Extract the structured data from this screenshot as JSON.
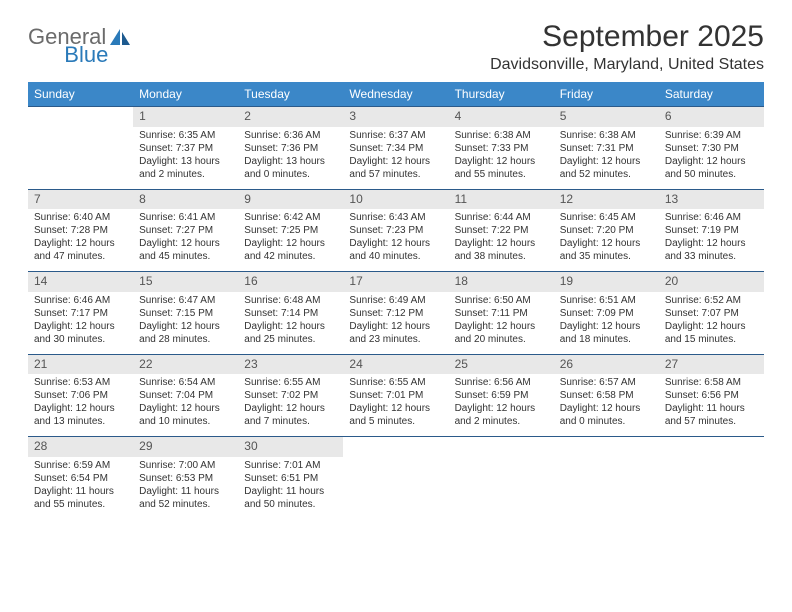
{
  "logo": {
    "text_general": "General",
    "text_blue": "Blue",
    "icon_color": "#2a7ab9"
  },
  "title": "September 2025",
  "location": "Davidsonville, Maryland, United States",
  "colors": {
    "header_bg": "#3b87c8",
    "header_fg": "#ffffff",
    "row_border": "#2b5a8a",
    "daynum_bg": "#e8e8e8",
    "page_bg": "#ffffff",
    "text": "#333333"
  },
  "day_headers": [
    "Sunday",
    "Monday",
    "Tuesday",
    "Wednesday",
    "Thursday",
    "Friday",
    "Saturday"
  ],
  "weeks": [
    [
      {
        "num": "",
        "sunrise": "",
        "sunset": "",
        "daylight": ""
      },
      {
        "num": "1",
        "sunrise": "Sunrise: 6:35 AM",
        "sunset": "Sunset: 7:37 PM",
        "daylight": "Daylight: 13 hours and 2 minutes."
      },
      {
        "num": "2",
        "sunrise": "Sunrise: 6:36 AM",
        "sunset": "Sunset: 7:36 PM",
        "daylight": "Daylight: 13 hours and 0 minutes."
      },
      {
        "num": "3",
        "sunrise": "Sunrise: 6:37 AM",
        "sunset": "Sunset: 7:34 PM",
        "daylight": "Daylight: 12 hours and 57 minutes."
      },
      {
        "num": "4",
        "sunrise": "Sunrise: 6:38 AM",
        "sunset": "Sunset: 7:33 PM",
        "daylight": "Daylight: 12 hours and 55 minutes."
      },
      {
        "num": "5",
        "sunrise": "Sunrise: 6:38 AM",
        "sunset": "Sunset: 7:31 PM",
        "daylight": "Daylight: 12 hours and 52 minutes."
      },
      {
        "num": "6",
        "sunrise": "Sunrise: 6:39 AM",
        "sunset": "Sunset: 7:30 PM",
        "daylight": "Daylight: 12 hours and 50 minutes."
      }
    ],
    [
      {
        "num": "7",
        "sunrise": "Sunrise: 6:40 AM",
        "sunset": "Sunset: 7:28 PM",
        "daylight": "Daylight: 12 hours and 47 minutes."
      },
      {
        "num": "8",
        "sunrise": "Sunrise: 6:41 AM",
        "sunset": "Sunset: 7:27 PM",
        "daylight": "Daylight: 12 hours and 45 minutes."
      },
      {
        "num": "9",
        "sunrise": "Sunrise: 6:42 AM",
        "sunset": "Sunset: 7:25 PM",
        "daylight": "Daylight: 12 hours and 42 minutes."
      },
      {
        "num": "10",
        "sunrise": "Sunrise: 6:43 AM",
        "sunset": "Sunset: 7:23 PM",
        "daylight": "Daylight: 12 hours and 40 minutes."
      },
      {
        "num": "11",
        "sunrise": "Sunrise: 6:44 AM",
        "sunset": "Sunset: 7:22 PM",
        "daylight": "Daylight: 12 hours and 38 minutes."
      },
      {
        "num": "12",
        "sunrise": "Sunrise: 6:45 AM",
        "sunset": "Sunset: 7:20 PM",
        "daylight": "Daylight: 12 hours and 35 minutes."
      },
      {
        "num": "13",
        "sunrise": "Sunrise: 6:46 AM",
        "sunset": "Sunset: 7:19 PM",
        "daylight": "Daylight: 12 hours and 33 minutes."
      }
    ],
    [
      {
        "num": "14",
        "sunrise": "Sunrise: 6:46 AM",
        "sunset": "Sunset: 7:17 PM",
        "daylight": "Daylight: 12 hours and 30 minutes."
      },
      {
        "num": "15",
        "sunrise": "Sunrise: 6:47 AM",
        "sunset": "Sunset: 7:15 PM",
        "daylight": "Daylight: 12 hours and 28 minutes."
      },
      {
        "num": "16",
        "sunrise": "Sunrise: 6:48 AM",
        "sunset": "Sunset: 7:14 PM",
        "daylight": "Daylight: 12 hours and 25 minutes."
      },
      {
        "num": "17",
        "sunrise": "Sunrise: 6:49 AM",
        "sunset": "Sunset: 7:12 PM",
        "daylight": "Daylight: 12 hours and 23 minutes."
      },
      {
        "num": "18",
        "sunrise": "Sunrise: 6:50 AM",
        "sunset": "Sunset: 7:11 PM",
        "daylight": "Daylight: 12 hours and 20 minutes."
      },
      {
        "num": "19",
        "sunrise": "Sunrise: 6:51 AM",
        "sunset": "Sunset: 7:09 PM",
        "daylight": "Daylight: 12 hours and 18 minutes."
      },
      {
        "num": "20",
        "sunrise": "Sunrise: 6:52 AM",
        "sunset": "Sunset: 7:07 PM",
        "daylight": "Daylight: 12 hours and 15 minutes."
      }
    ],
    [
      {
        "num": "21",
        "sunrise": "Sunrise: 6:53 AM",
        "sunset": "Sunset: 7:06 PM",
        "daylight": "Daylight: 12 hours and 13 minutes."
      },
      {
        "num": "22",
        "sunrise": "Sunrise: 6:54 AM",
        "sunset": "Sunset: 7:04 PM",
        "daylight": "Daylight: 12 hours and 10 minutes."
      },
      {
        "num": "23",
        "sunrise": "Sunrise: 6:55 AM",
        "sunset": "Sunset: 7:02 PM",
        "daylight": "Daylight: 12 hours and 7 minutes."
      },
      {
        "num": "24",
        "sunrise": "Sunrise: 6:55 AM",
        "sunset": "Sunset: 7:01 PM",
        "daylight": "Daylight: 12 hours and 5 minutes."
      },
      {
        "num": "25",
        "sunrise": "Sunrise: 6:56 AM",
        "sunset": "Sunset: 6:59 PM",
        "daylight": "Daylight: 12 hours and 2 minutes."
      },
      {
        "num": "26",
        "sunrise": "Sunrise: 6:57 AM",
        "sunset": "Sunset: 6:58 PM",
        "daylight": "Daylight: 12 hours and 0 minutes."
      },
      {
        "num": "27",
        "sunrise": "Sunrise: 6:58 AM",
        "sunset": "Sunset: 6:56 PM",
        "daylight": "Daylight: 11 hours and 57 minutes."
      }
    ],
    [
      {
        "num": "28",
        "sunrise": "Sunrise: 6:59 AM",
        "sunset": "Sunset: 6:54 PM",
        "daylight": "Daylight: 11 hours and 55 minutes."
      },
      {
        "num": "29",
        "sunrise": "Sunrise: 7:00 AM",
        "sunset": "Sunset: 6:53 PM",
        "daylight": "Daylight: 11 hours and 52 minutes."
      },
      {
        "num": "30",
        "sunrise": "Sunrise: 7:01 AM",
        "sunset": "Sunset: 6:51 PM",
        "daylight": "Daylight: 11 hours and 50 minutes."
      },
      {
        "num": "",
        "sunrise": "",
        "sunset": "",
        "daylight": ""
      },
      {
        "num": "",
        "sunrise": "",
        "sunset": "",
        "daylight": ""
      },
      {
        "num": "",
        "sunrise": "",
        "sunset": "",
        "daylight": ""
      },
      {
        "num": "",
        "sunrise": "",
        "sunset": "",
        "daylight": ""
      }
    ]
  ]
}
